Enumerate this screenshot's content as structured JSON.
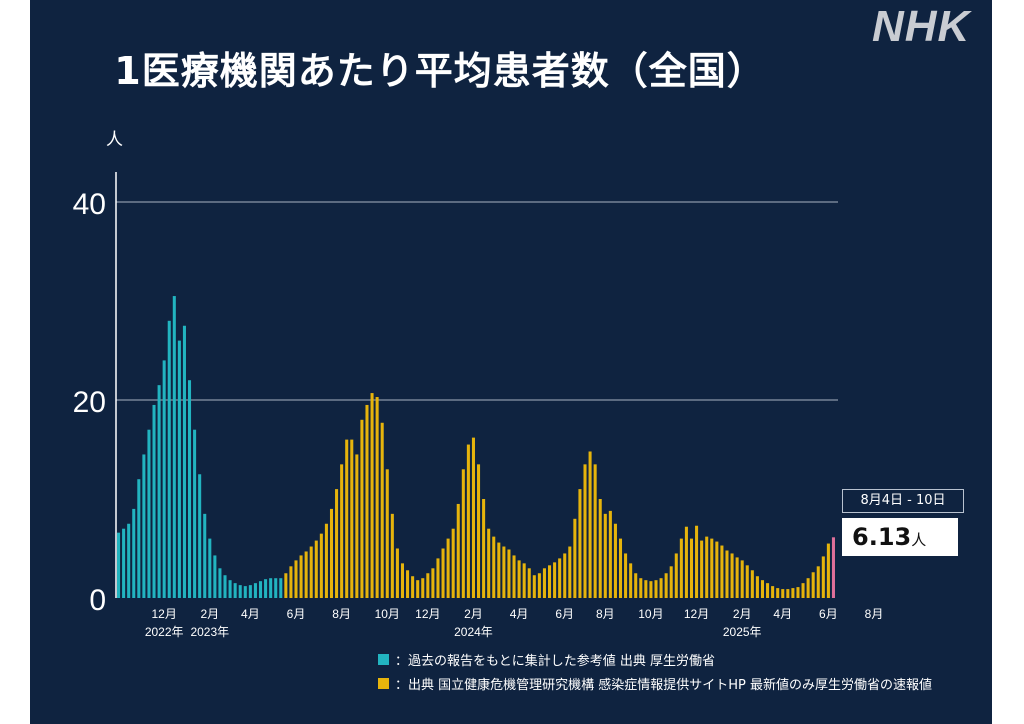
{
  "title": "1医療機関あたり平均患者数（全国）",
  "logo": "NHK",
  "y_unit": "人",
  "callout": {
    "date": "8月4日 - 10日",
    "value": "6.13",
    "unit": "人"
  },
  "legend": [
    {
      "text": "：過去の報告をもとに集計した参考値  出典 厚生労働省",
      "color": "#22b4c0"
    },
    {
      "text": "：出典 国立健康危機管理研究機構 感染症情報提供サイトHP 最新値のみ厚生労働省の速報値",
      "color": "#e6b40c"
    }
  ],
  "chart_data": {
    "type": "bar",
    "ylim": [
      0,
      40
    ],
    "yticks": [
      0,
      20,
      40
    ],
    "grid": true,
    "month_ticks": [
      {
        "label": "12月",
        "index": 9
      },
      {
        "label": "2月",
        "index": 18
      },
      {
        "label": "4月",
        "index": 26
      },
      {
        "label": "6月",
        "index": 35
      },
      {
        "label": "8月",
        "index": 44
      },
      {
        "label": "10月",
        "index": 53
      },
      {
        "label": "12月",
        "index": 61
      },
      {
        "label": "2月",
        "index": 70
      },
      {
        "label": "4月",
        "index": 79
      },
      {
        "label": "6月",
        "index": 88
      },
      {
        "label": "8月",
        "index": 96
      },
      {
        "label": "10月",
        "index": 105
      },
      {
        "label": "12月",
        "index": 114
      },
      {
        "label": "2月",
        "index": 123
      },
      {
        "label": "4月",
        "index": 131
      },
      {
        "label": "6月",
        "index": 140
      },
      {
        "label": "8月",
        "index": 149
      }
    ],
    "year_labels": [
      {
        "label": "2022年",
        "index": 9
      },
      {
        "label": "2023年",
        "index": 18
      },
      {
        "label": "2024年",
        "index": 70
      },
      {
        "label": "2025年",
        "index": 123
      }
    ],
    "series": [
      {
        "color": "#22b4c0",
        "values": [
          6.6,
          7.0,
          7.5,
          9.0,
          12.0,
          14.5,
          17.0,
          19.5,
          21.5,
          24.0,
          28.0,
          30.5,
          26.0,
          27.5,
          22.0,
          17.0,
          12.5,
          8.5,
          6.0,
          4.3,
          3.0,
          2.3,
          1.8,
          1.5,
          1.3,
          1.2,
          1.3,
          1.5,
          1.7,
          1.9,
          2.0,
          2.0,
          2.0
        ]
      },
      {
        "color": "#e6b40c",
        "values": [
          2.5,
          3.2,
          3.8,
          4.3,
          4.7,
          5.2,
          5.8,
          6.5,
          7.5,
          9.0,
          11.0,
          13.5,
          16.0,
          16.0,
          14.5,
          18.0,
          19.5,
          20.7,
          20.3,
          17.7,
          13.0,
          8.5,
          5.0,
          3.5,
          2.8,
          2.2,
          1.8,
          2.0,
          2.5,
          3.0,
          4.0,
          5.0,
          6.0,
          7.0,
          9.5,
          13.0,
          15.5,
          16.2,
          13.5,
          10.0,
          7.0,
          6.2,
          5.6,
          5.2,
          4.9,
          4.3,
          3.8,
          3.5,
          3.0,
          2.3,
          2.5,
          3.0,
          3.3,
          3.6,
          4.0,
          4.5,
          5.2,
          8.0,
          11.0,
          13.5,
          14.8,
          13.5,
          10.0,
          8.5,
          8.8,
          7.5,
          6.0,
          4.5,
          3.5,
          2.5,
          2.0,
          1.8,
          1.7,
          1.8,
          2.0,
          2.5,
          3.2,
          4.5,
          6.0,
          7.2,
          6.0,
          7.3,
          5.8,
          6.2,
          6.0,
          5.7,
          5.3,
          4.8,
          4.5,
          4.1,
          3.8,
          3.3,
          2.8,
          2.2,
          1.8,
          1.5,
          1.2,
          1.0,
          0.9,
          0.9,
          1.0,
          1.1,
          1.5,
          2.0,
          2.6,
          3.2,
          4.2,
          5.5,
          6.13
        ]
      }
    ],
    "latest_highlight_color": "#e0709a"
  }
}
